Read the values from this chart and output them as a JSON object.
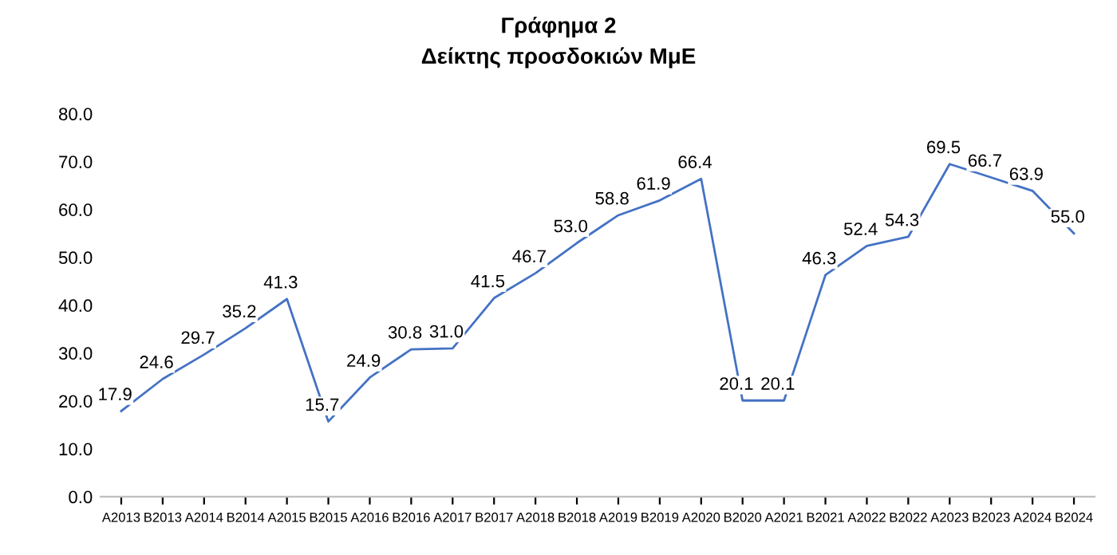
{
  "chart_data": {
    "type": "line",
    "title": "Γράφημα 2\nΔείκτης προσδοκιών ΜμΕ",
    "categories": [
      "A2013",
      "B2013",
      "A2014",
      "B2014",
      "A2015",
      "B2015",
      "A2016",
      "B2016",
      "A2017",
      "B2017",
      "A2018",
      "B2018",
      "A2019",
      "B2019",
      "A2020",
      "B2020",
      "A2021",
      "B2021",
      "A2022",
      "B2022",
      "A2023",
      "B2023",
      "A2024",
      "B2024"
    ],
    "series": [
      {
        "color": "#4472c4",
        "values": [
          17.9,
          24.6,
          29.7,
          35.2,
          41.3,
          15.7,
          24.9,
          30.8,
          31.0,
          41.5,
          46.7,
          53.0,
          58.8,
          61.9,
          66.4,
          20.1,
          20.1,
          46.3,
          52.4,
          54.3,
          69.5,
          66.7,
          63.9,
          55.0
        ]
      }
    ],
    "ylim": [
      0,
      80
    ],
    "yticks": [
      {
        "value": 0,
        "label": "0.0"
      },
      {
        "value": 10,
        "label": "10.0"
      },
      {
        "value": 20,
        "label": "20.0"
      },
      {
        "value": 30,
        "label": "30.0"
      },
      {
        "value": 40,
        "label": "40.0"
      },
      {
        "value": 50,
        "label": "50.0"
      },
      {
        "value": 60,
        "label": "60.0"
      },
      {
        "value": 70,
        "label": "70.0"
      },
      {
        "value": 80,
        "label": "80.0"
      }
    ],
    "value_labels": [
      "17.9",
      "24.6",
      "29.7",
      "35.2",
      "41.3",
      "15.7",
      "24.9",
      "30.8",
      "31.0",
      "41.5",
      "46.7",
      "53.0",
      "58.8",
      "61.9",
      "66.4",
      "20.1",
      "20.1",
      "46.3",
      "52.4",
      "54.3",
      "69.5",
      "66.7",
      "63.9",
      "55.0"
    ],
    "grid": false,
    "legend": false,
    "marker": "none",
    "line_style": "solid"
  }
}
